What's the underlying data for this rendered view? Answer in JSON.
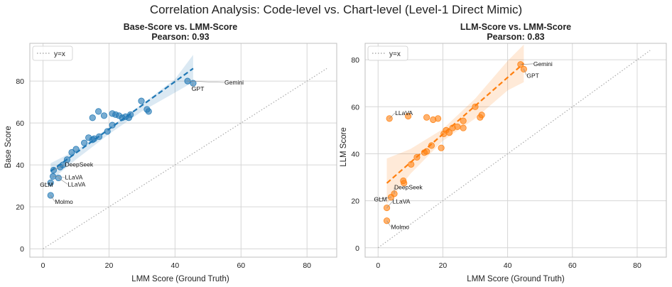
{
  "suptitle": "Correlation Analysis: Code-level vs. Chart-level (Level-1 Direct Mimic)",
  "chart_data": [
    {
      "type": "scatter",
      "title": "Base-Score vs. LMM-Score",
      "subtitle": "Pearson: 0.93",
      "xlabel": "LMM Score (Ground Truth)",
      "ylabel": "Base Score",
      "xlim": [
        -4,
        89
      ],
      "ylim": [
        -4,
        98
      ],
      "xticks": [
        0,
        20,
        40,
        60,
        80
      ],
      "yticks": [
        0,
        20,
        40,
        60,
        80
      ],
      "legend": {
        "label": "y=x",
        "placement": "top-left"
      },
      "color": "#1f77b4",
      "points": [
        {
          "x": 2.3,
          "y": 25.5
        },
        {
          "x": 2.3,
          "y": 31.5
        },
        {
          "x": 3.0,
          "y": 34.5
        },
        {
          "x": 3.2,
          "y": 37.5
        },
        {
          "x": 4.7,
          "y": 33.8
        },
        {
          "x": 5.2,
          "y": 39.0
        },
        {
          "x": 6.0,
          "y": 40.0
        },
        {
          "x": 7.3,
          "y": 42.5
        },
        {
          "x": 8.7,
          "y": 46.0
        },
        {
          "x": 10.0,
          "y": 47.5
        },
        {
          "x": 12.5,
          "y": 50.5
        },
        {
          "x": 13.8,
          "y": 53.0
        },
        {
          "x": 15.0,
          "y": 52.0
        },
        {
          "x": 15.5,
          "y": 52.5
        },
        {
          "x": 17.0,
          "y": 53.5
        },
        {
          "x": 16.8,
          "y": 65.5
        },
        {
          "x": 18.5,
          "y": 63.5
        },
        {
          "x": 15.0,
          "y": 62.5
        },
        {
          "x": 19.5,
          "y": 56.0
        },
        {
          "x": 21.0,
          "y": 59.0
        },
        {
          "x": 21.0,
          "y": 64.5
        },
        {
          "x": 22.0,
          "y": 64.0
        },
        {
          "x": 23.0,
          "y": 63.5
        },
        {
          "x": 24.0,
          "y": 62.5
        },
        {
          "x": 25.0,
          "y": 63.0
        },
        {
          "x": 26.0,
          "y": 62.5
        },
        {
          "x": 26.5,
          "y": 64.0
        },
        {
          "x": 29.8,
          "y": 70.5
        },
        {
          "x": 31.5,
          "y": 66.5
        },
        {
          "x": 32.0,
          "y": 65.5
        },
        {
          "x": 43.8,
          "y": 80.0
        },
        {
          "x": 45.5,
          "y": 79.0
        }
      ],
      "fit": {
        "x": [
          2.3,
          45.5
        ],
        "y": [
          37.0,
          86.0
        ]
      },
      "ci_band": {
        "x": [
          2.3,
          10,
          20,
          30,
          40,
          45.5
        ],
        "upper": [
          40.8,
          47.0,
          57.8,
          69.0,
          81.0,
          92.5
        ],
        "lower": [
          32.5,
          42.6,
          54.7,
          65.6,
          74.5,
          79.5
        ]
      },
      "annotations": [
        {
          "text": "Gemini",
          "x": 43.8,
          "y": 80.0,
          "tx": 52,
          "ty": 5
        },
        {
          "text": "GPT",
          "x": 45.5,
          "y": 79.0,
          "tx": -2,
          "ty": 11
        },
        {
          "text": "DeepSeek",
          "x": 3.2,
          "y": 37.5,
          "tx": 16,
          "ty": -5
        },
        {
          "text": "LLaVA",
          "x": 3.0,
          "y": 34.5,
          "tx": 17,
          "ty": 4
        },
        {
          "text": "LLaVA",
          "x": 4.7,
          "y": 33.8,
          "tx": 13,
          "ty": 12
        },
        {
          "text": "GLM",
          "x": 2.3,
          "y": 31.5,
          "tx": -15,
          "ty": 6
        },
        {
          "text": "Molmo",
          "x": 2.3,
          "y": 25.5,
          "tx": 6,
          "ty": 12
        }
      ]
    },
    {
      "type": "scatter",
      "title": "LLM-Score vs. LMM-Score",
      "subtitle": "Pearson: 0.83",
      "xlabel": "LMM Score (Ground Truth)",
      "ylabel": "LLM Score",
      "xlim": [
        -4,
        89
      ],
      "ylim": [
        -4,
        87
      ],
      "xticks": [
        0,
        20,
        40,
        60,
        80
      ],
      "yticks": [
        0,
        20,
        40,
        60,
        80
      ],
      "legend": {
        "label": "y=x",
        "placement": "top-left"
      },
      "color": "#ff7f0e",
      "points": [
        {
          "x": 2.7,
          "y": 11.5
        },
        {
          "x": 2.7,
          "y": 17.0
        },
        {
          "x": 4.0,
          "y": 21.5
        },
        {
          "x": 5.0,
          "y": 23.0
        },
        {
          "x": 3.5,
          "y": 55.0
        },
        {
          "x": 7.8,
          "y": 28.5
        },
        {
          "x": 8.0,
          "y": 27.5
        },
        {
          "x": 9.3,
          "y": 56.0
        },
        {
          "x": 10.2,
          "y": 35.5
        },
        {
          "x": 12.0,
          "y": 38.5
        },
        {
          "x": 14.3,
          "y": 40.5
        },
        {
          "x": 15.0,
          "y": 41.0
        },
        {
          "x": 15.0,
          "y": 55.5
        },
        {
          "x": 16.5,
          "y": 43.5
        },
        {
          "x": 17.0,
          "y": 54.5
        },
        {
          "x": 18.5,
          "y": 55.0
        },
        {
          "x": 19.5,
          "y": 42.5
        },
        {
          "x": 20.3,
          "y": 48.5
        },
        {
          "x": 21.0,
          "y": 50.0
        },
        {
          "x": 22.0,
          "y": 49.0
        },
        {
          "x": 23.0,
          "y": 51.0
        },
        {
          "x": 24.5,
          "y": 51.5
        },
        {
          "x": 26.3,
          "y": 54.0
        },
        {
          "x": 26.3,
          "y": 51.0
        },
        {
          "x": 30.0,
          "y": 60.0
        },
        {
          "x": 31.5,
          "y": 55.5
        },
        {
          "x": 32.0,
          "y": 56.5
        },
        {
          "x": 44.0,
          "y": 78.0
        },
        {
          "x": 45.0,
          "y": 76.0
        }
      ],
      "fit": {
        "x": [
          2.7,
          45.0
        ],
        "y": [
          27.5,
          78.5
        ]
      },
      "ci_band": {
        "x": [
          2.7,
          10,
          20,
          30,
          40,
          45.0
        ],
        "upper": [
          38.0,
          42.0,
          50.5,
          63.5,
          79.5,
          86.5
        ],
        "lower": [
          18.5,
          31.5,
          45.5,
          55.0,
          67.0,
          70.5
        ]
      },
      "annotations": [
        {
          "text": "Gemini",
          "x": 44.0,
          "y": 78.0,
          "tx": 18,
          "ty": 2
        },
        {
          "text": "GPT",
          "x": 45.0,
          "y": 76.0,
          "tx": 4,
          "ty": 12
        },
        {
          "text": "LLaVA",
          "x": 3.5,
          "y": 55.0,
          "tx": 8,
          "ty": -5
        },
        {
          "text": "DeepSeek",
          "x": 5.0,
          "y": 23.0,
          "tx": 0,
          "ty": -6
        },
        {
          "text": "GLM",
          "x": 4.0,
          "y": 21.5,
          "tx": -24,
          "ty": 6
        },
        {
          "text": "LLaVA",
          "x": 2.7,
          "y": 17.0,
          "tx": 8,
          "ty": -6
        },
        {
          "text": "Molmo",
          "x": 2.7,
          "y": 11.5,
          "tx": 6,
          "ty": 12
        }
      ]
    }
  ]
}
